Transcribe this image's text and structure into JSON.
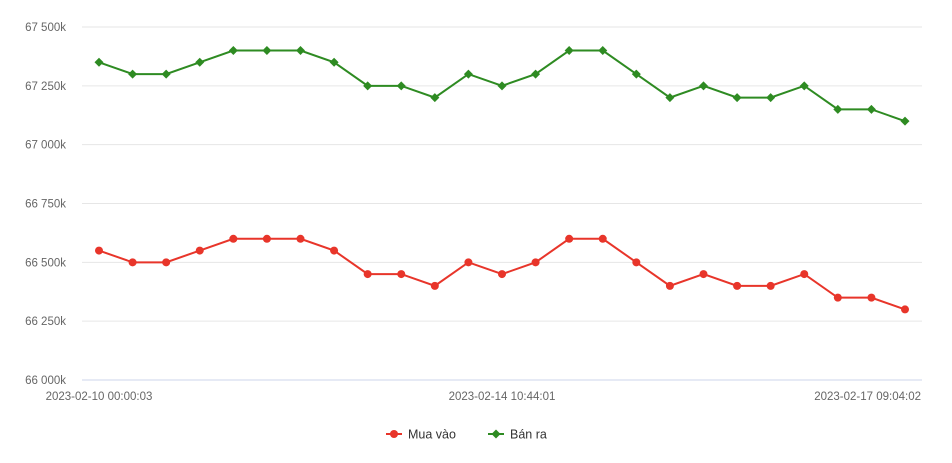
{
  "chart_data": {
    "type": "line",
    "title": "",
    "xlabel": "",
    "ylabel": "",
    "ylim": [
      66000,
      67500
    ],
    "yticks": [
      66000,
      66250,
      66500,
      66750,
      67000,
      67250,
      67500
    ],
    "ytick_labels": [
      "66 000k",
      "66 250k",
      "66 500k",
      "66 750k",
      "67 000k",
      "67 250k",
      "67 500k"
    ],
    "xtick_labels": [
      {
        "index": 0,
        "label": "2023-02-10 00:00:03"
      },
      {
        "index": 12,
        "label": "2023-02-14 10:44:01"
      },
      {
        "index": 24,
        "label": "2023-02-17 09:04:02"
      }
    ],
    "grid": true,
    "legend_position": "bottom",
    "series": [
      {
        "name": "Mua vào",
        "color": "#e8352a",
        "marker": "circle",
        "values": [
          66550,
          66500,
          66500,
          66550,
          66600,
          66600,
          66600,
          66550,
          66450,
          66450,
          66400,
          66500,
          66450,
          66500,
          66600,
          66600,
          66500,
          66400,
          66450,
          66400,
          66400,
          66450,
          66350,
          66350,
          66300
        ]
      },
      {
        "name": "Bán ra",
        "color": "#2e8b22",
        "marker": "diamond",
        "values": [
          67350,
          67300,
          67300,
          67350,
          67400,
          67400,
          67400,
          67350,
          67250,
          67250,
          67200,
          67300,
          67250,
          67300,
          67400,
          67400,
          67300,
          67200,
          67250,
          67200,
          67200,
          67250,
          67150,
          67150,
          67100
        ]
      }
    ]
  }
}
